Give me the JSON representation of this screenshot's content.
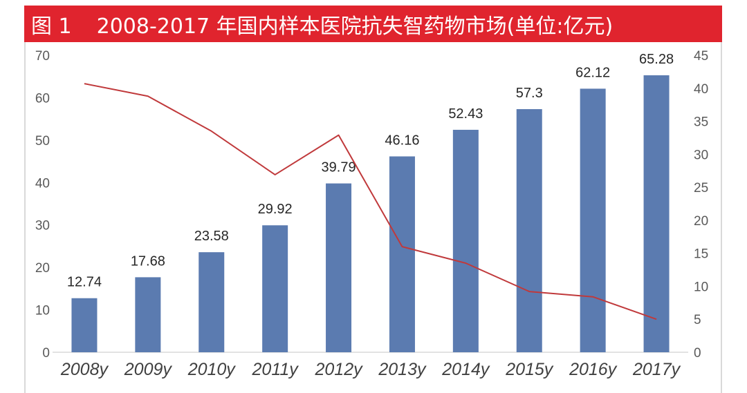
{
  "colors": {
    "title_bar": "#e0242e",
    "title_text": "#ffffff",
    "bar": "#5b7bb0",
    "line": "#c0393b"
  },
  "title": {
    "figure_label": "图 1",
    "text": "2008-2017 年国内样本医院抗失智药物市场(单位:亿元)"
  },
  "chart_data": {
    "type": "bar",
    "title": "图 1 2008-2017 年国内样本医院抗失智药物市场(单位:亿元)",
    "categories": [
      "2008y",
      "2009y",
      "2010y",
      "2011y",
      "2012y",
      "2013y",
      "2014y",
      "2015y",
      "2016y",
      "2017y"
    ],
    "series": [
      {
        "type": "bar",
        "axis": "left",
        "values": [
          12.74,
          17.68,
          23.58,
          29.92,
          39.79,
          46.16,
          52.43,
          57.3,
          62.12,
          65.28
        ],
        "labels": [
          "12.74",
          "17.68",
          "23.58",
          "29.92",
          "39.79",
          "46.16",
          "52.43",
          "57.3",
          "62.12",
          "65.28"
        ]
      },
      {
        "type": "line",
        "axis": "right",
        "values": [
          40.7,
          38.8,
          33.5,
          26.9,
          32.9,
          16.0,
          13.5,
          9.2,
          8.4,
          5.0
        ]
      }
    ],
    "y_left": {
      "min": 0,
      "max": 70,
      "step": 10,
      "ticks": [
        "0",
        "10",
        "20",
        "30",
        "40",
        "50",
        "60",
        "70"
      ]
    },
    "y_right": {
      "min": 0,
      "max": 45,
      "step": 5,
      "ticks": [
        "0",
        "5",
        "10",
        "15",
        "20",
        "25",
        "30",
        "35",
        "40",
        "45"
      ]
    },
    "xlabel": "",
    "ylabel": "",
    "grid": false,
    "legend": "none"
  }
}
